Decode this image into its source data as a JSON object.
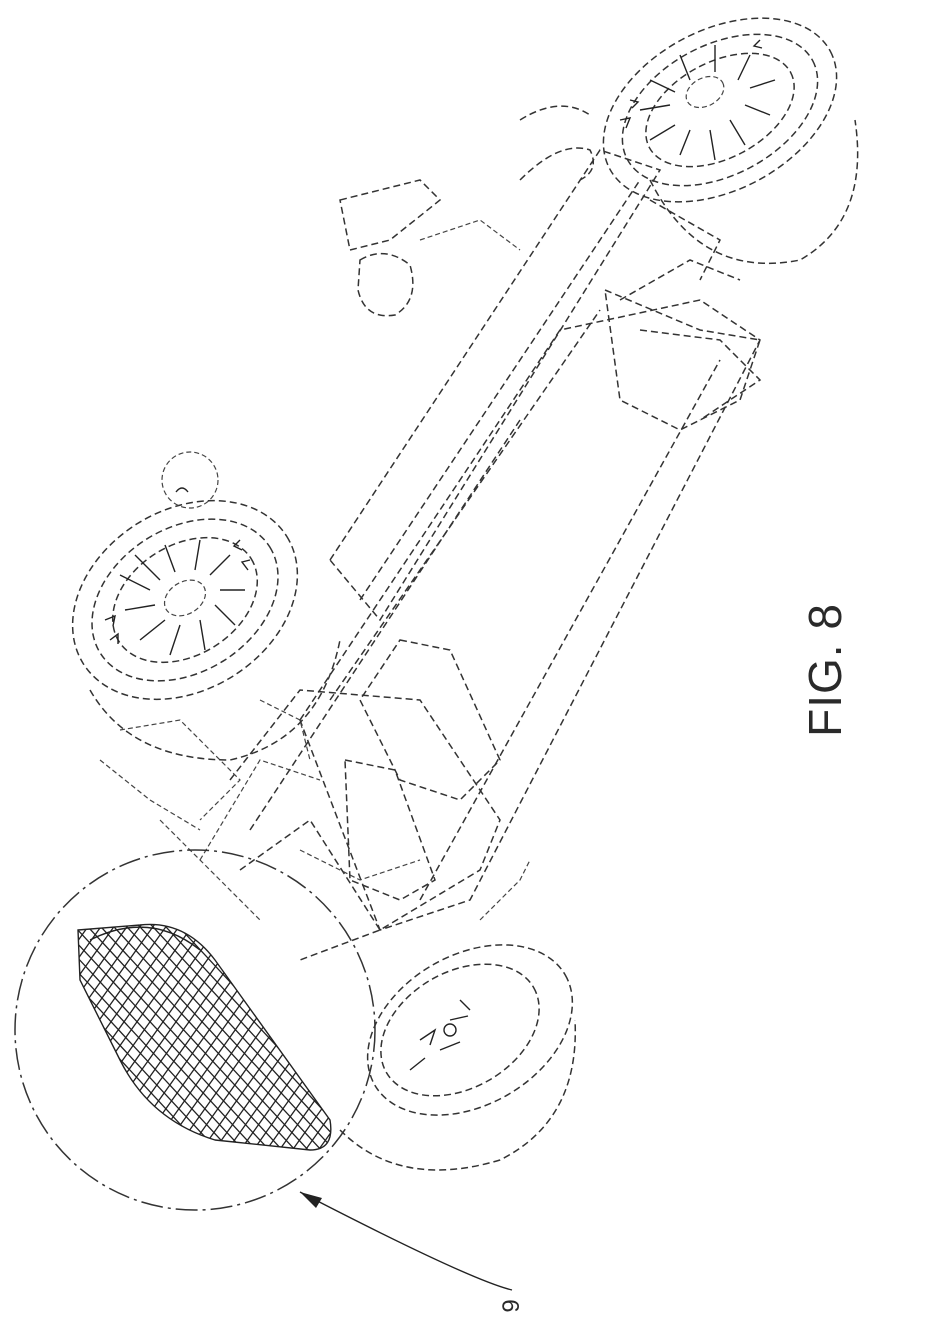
{
  "figure_label": "FIG. 8",
  "reference_numeral": "9"
}
